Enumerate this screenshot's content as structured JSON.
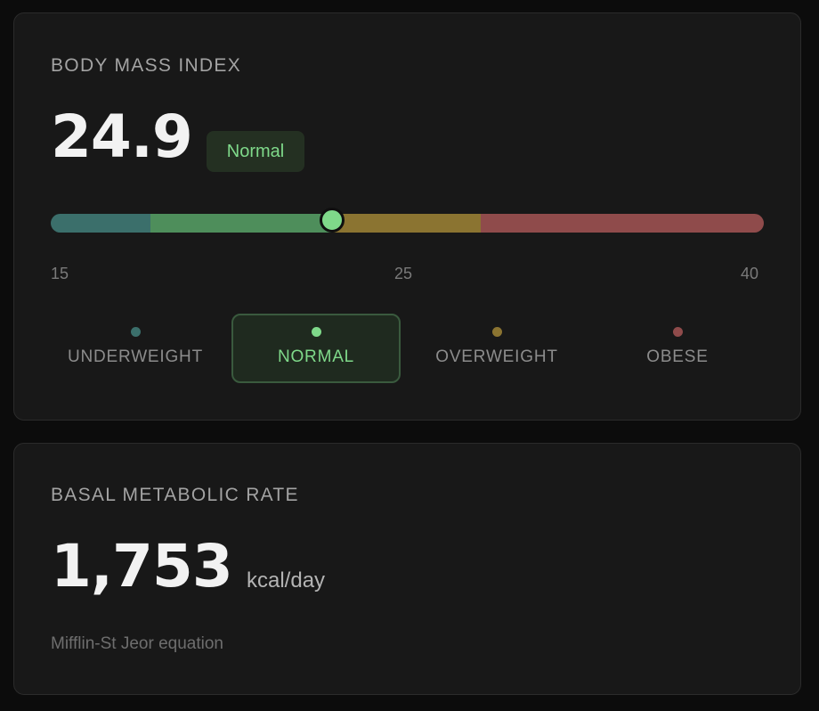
{
  "bmi": {
    "title": "BODY MASS INDEX",
    "value": "24.9",
    "status": "Normal",
    "scale": {
      "min": "15",
      "mid": "25",
      "max": "40"
    },
    "categories": [
      {
        "label": "UNDERWEIGHT",
        "color": "#3b6f6b",
        "selected": false
      },
      {
        "label": "NORMAL",
        "color": "#7fd98a",
        "selected": true
      },
      {
        "label": "OVERWEIGHT",
        "color": "#8b7431",
        "selected": false
      },
      {
        "label": "OBESE",
        "color": "#8f4b4b",
        "selected": false
      }
    ],
    "accent": "#7fd98a"
  },
  "bmr": {
    "title": "BASAL METABOLIC RATE",
    "value": "1,753",
    "unit": "kcal/day",
    "note": "Mifflin-St Jeor equation"
  }
}
